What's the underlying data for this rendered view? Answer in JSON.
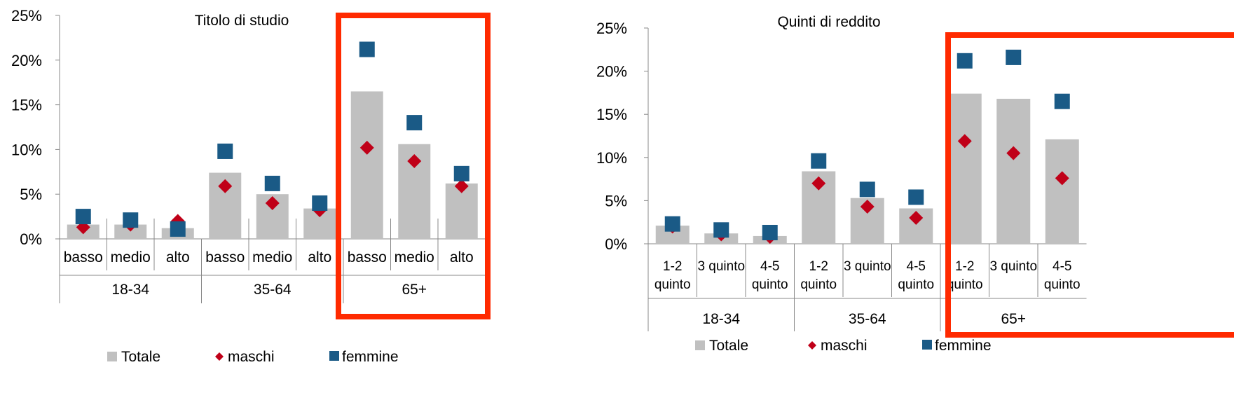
{
  "colors": {
    "totale": "#c0c0c0",
    "maschi": "#c00018",
    "femmine": "#1a5a86",
    "highlight": "#ff2a00"
  },
  "legend": {
    "totale": "Totale",
    "maschi": "maschi",
    "femmine": "femmine"
  },
  "chart_data": [
    {
      "type": "bar",
      "title": "Titolo di studio",
      "ylim": [
        0,
        25
      ],
      "yticks": [
        "0%",
        "5%",
        "10%",
        "15%",
        "20%",
        "25%"
      ],
      "categories": [
        "basso",
        "medio",
        "alto",
        "basso",
        "medio",
        "alto",
        "basso",
        "medio",
        "alto"
      ],
      "groups": [
        "18-34",
        "35-64",
        "65+"
      ],
      "highlighted_group": "65+",
      "series": [
        {
          "name": "Totale",
          "kind": "bar",
          "values": [
            1.6,
            1.6,
            1.2,
            7.4,
            5.0,
            3.4,
            16.5,
            10.6,
            6.2
          ]
        },
        {
          "name": "maschi",
          "kind": "diamond",
          "values": [
            1.3,
            1.6,
            2.0,
            5.9,
            4.0,
            3.2,
            10.2,
            8.7,
            5.9
          ]
        },
        {
          "name": "femmine",
          "kind": "square",
          "values": [
            2.5,
            2.1,
            1.1,
            9.8,
            6.2,
            4.0,
            21.2,
            13.0,
            7.3
          ]
        }
      ]
    },
    {
      "type": "bar",
      "title": "Quinti di reddito",
      "ylim": [
        0,
        25
      ],
      "yticks": [
        "0%",
        "5%",
        "10%",
        "15%",
        "20%",
        "25%"
      ],
      "categories": [
        [
          "1-2",
          "quinto"
        ],
        [
          "3 quinto"
        ],
        [
          "4-5",
          "quinto"
        ],
        [
          "1-2",
          "quinto"
        ],
        [
          "3 quinto"
        ],
        [
          "4-5",
          "quinto"
        ],
        [
          "1-2",
          "quinto"
        ],
        [
          "3 quinto"
        ],
        [
          "4-5",
          "quinto"
        ]
      ],
      "groups": [
        "18-34",
        "35-64",
        "65+"
      ],
      "highlighted_group": "65+",
      "series": [
        {
          "name": "Totale",
          "kind": "bar",
          "values": [
            2.1,
            1.2,
            0.9,
            8.4,
            5.3,
            4.1,
            17.4,
            16.8,
            12.1
          ]
        },
        {
          "name": "maschi",
          "kind": "diamond",
          "values": [
            2.0,
            1.1,
            0.8,
            7.0,
            4.3,
            3.0,
            11.9,
            10.5,
            7.6
          ]
        },
        {
          "name": "femmine",
          "kind": "square",
          "values": [
            2.3,
            1.6,
            1.3,
            9.6,
            6.3,
            5.4,
            21.2,
            21.6,
            16.5
          ]
        }
      ]
    }
  ]
}
